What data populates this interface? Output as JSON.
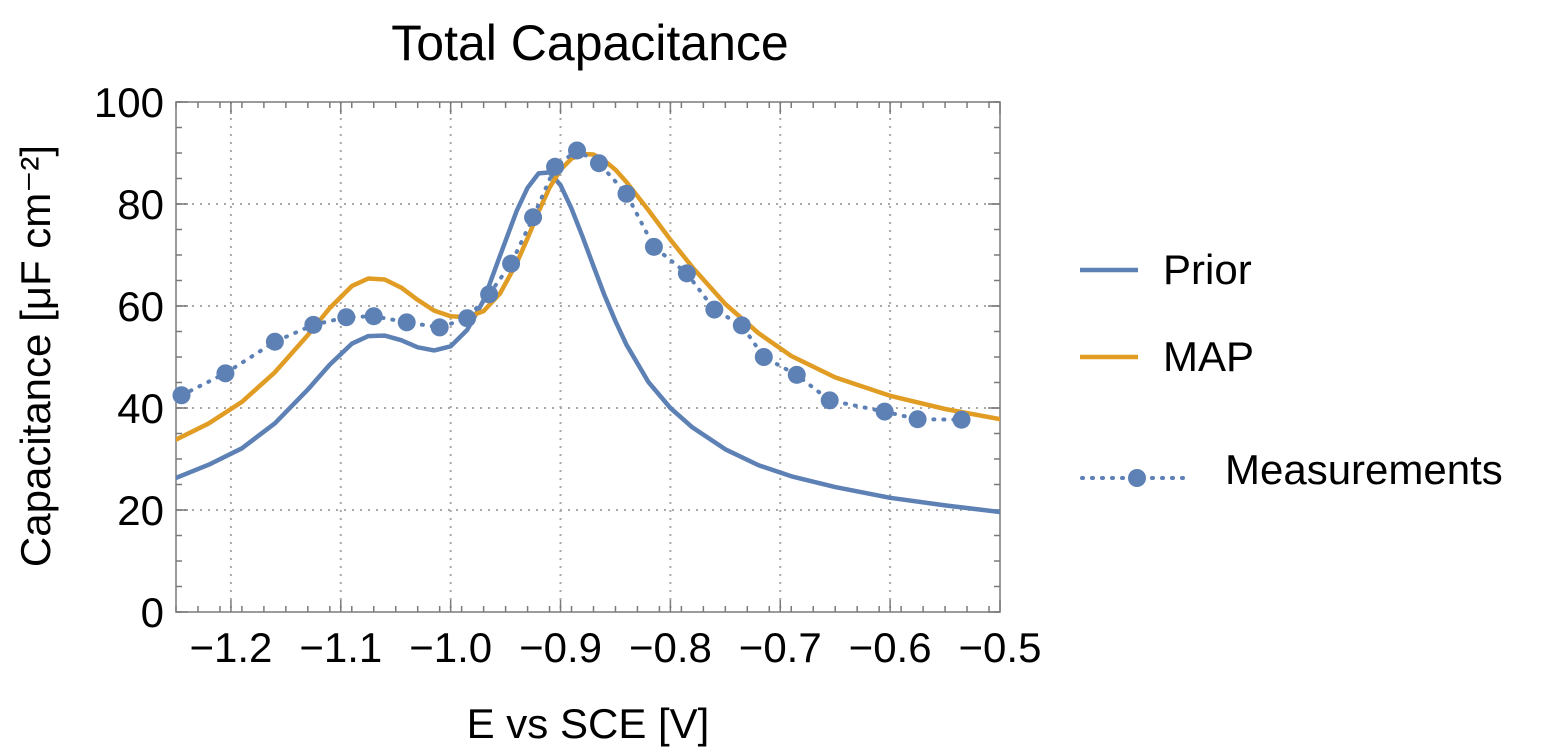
{
  "chart_data": {
    "type": "line",
    "title": "Total Capacitance",
    "xlabel": "E vs SCE [V]",
    "ylabel": "Capacitance [μF cm⁻²]",
    "xlim": [
      -1.25,
      -0.5
    ],
    "ylim": [
      0,
      100
    ],
    "xticks": [
      -1.2,
      -1.1,
      -1.0,
      -0.9,
      -0.8,
      -0.7,
      -0.6,
      -0.5
    ],
    "xtick_labels": [
      "−1.2",
      "−1.1",
      "−1.0",
      "−0.9",
      "−0.8",
      "−0.7",
      "−0.6",
      "−0.5"
    ],
    "yticks": [
      0,
      20,
      40,
      60,
      80,
      100
    ],
    "ytick_labels": [
      "0",
      "20",
      "40",
      "60",
      "80",
      "100"
    ],
    "grid": true,
    "legend_position": "right",
    "series": [
      {
        "name": "Prior",
        "color": "#5e81b5",
        "style": "line",
        "x": [
          -1.25,
          -1.22,
          -1.19,
          -1.16,
          -1.13,
          -1.11,
          -1.09,
          -1.075,
          -1.06,
          -1.045,
          -1.03,
          -1.015,
          -1.0,
          -0.985,
          -0.97,
          -0.955,
          -0.94,
          -0.93,
          -0.92,
          -0.91,
          -0.9,
          -0.89,
          -0.88,
          -0.87,
          -0.86,
          -0.85,
          -0.84,
          -0.82,
          -0.8,
          -0.78,
          -0.75,
          -0.72,
          -0.69,
          -0.65,
          -0.6,
          -0.55,
          -0.5
        ],
        "y": [
          26.3,
          28.9,
          32.1,
          37.0,
          43.6,
          48.5,
          52.6,
          54.1,
          54.2,
          53.3,
          51.9,
          51.3,
          52.1,
          55.3,
          61.1,
          69.9,
          78.6,
          83.2,
          86.0,
          86.2,
          83.7,
          79.1,
          73.6,
          67.8,
          62.1,
          57.0,
          52.4,
          45.1,
          40.0,
          36.2,
          31.9,
          28.8,
          26.6,
          24.5,
          22.4,
          20.9,
          19.6
        ]
      },
      {
        "name": "MAP",
        "color": "#e19c24",
        "style": "line",
        "x": [
          -1.25,
          -1.22,
          -1.19,
          -1.16,
          -1.13,
          -1.11,
          -1.09,
          -1.075,
          -1.06,
          -1.045,
          -1.03,
          -1.015,
          -1.0,
          -0.985,
          -0.97,
          -0.955,
          -0.94,
          -0.93,
          -0.92,
          -0.91,
          -0.9,
          -0.89,
          -0.88,
          -0.87,
          -0.86,
          -0.85,
          -0.84,
          -0.82,
          -0.8,
          -0.78,
          -0.75,
          -0.72,
          -0.69,
          -0.65,
          -0.6,
          -0.55,
          -0.5
        ],
        "y": [
          33.8,
          37.0,
          41.2,
          47.0,
          54.3,
          59.6,
          63.9,
          65.4,
          65.2,
          63.6,
          61.2,
          59.1,
          58.0,
          57.8,
          59.0,
          62.5,
          68.4,
          73.3,
          78.5,
          83.2,
          86.7,
          88.9,
          89.8,
          89.7,
          88.5,
          86.7,
          84.3,
          78.8,
          73.0,
          67.6,
          60.4,
          54.7,
          50.2,
          46.0,
          42.4,
          39.8,
          37.8
        ]
      },
      {
        "name": "Measurements",
        "color": "#5e81b5",
        "style": "dotted-markers",
        "x": [
          -1.245,
          -1.205,
          -1.16,
          -1.125,
          -1.095,
          -1.07,
          -1.04,
          -1.01,
          -0.985,
          -0.965,
          -0.945,
          -0.925,
          -0.905,
          -0.885,
          -0.865,
          -0.84,
          -0.815,
          -0.785,
          -0.76,
          -0.735,
          -0.715,
          -0.685,
          -0.655,
          -0.605,
          -0.575,
          -0.535
        ],
        "y": [
          42.5,
          46.8,
          53.0,
          56.3,
          57.8,
          58.0,
          56.8,
          55.8,
          57.6,
          62.3,
          68.3,
          77.4,
          87.3,
          90.5,
          88.0,
          82.0,
          71.6,
          66.4,
          59.3,
          56.2,
          50.0,
          46.5,
          41.5,
          39.3,
          37.8,
          37.7
        ]
      }
    ]
  }
}
